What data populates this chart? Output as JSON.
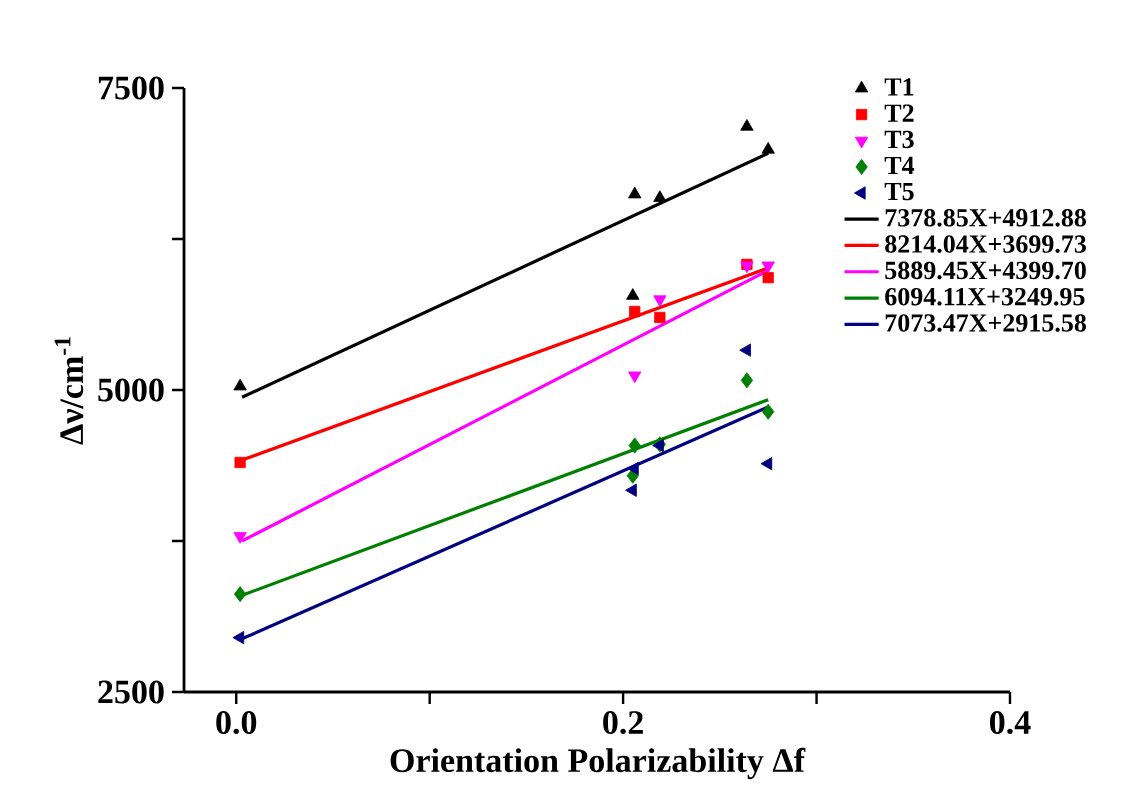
{
  "chart_data": {
    "type": "scatter",
    "xlabel": "Orientation Polarizability Δf",
    "ylabel": "Δν/cm$^{-1}$",
    "xlim": [
      -0.027,
      0.4
    ],
    "ylim": [
      2500,
      7500
    ],
    "xticks": [
      {
        "value": 0,
        "label": "0.0"
      },
      {
        "value": 0.1,
        "label": null
      },
      {
        "value": 0.2,
        "label": "0.2"
      },
      {
        "value": 0.3,
        "label": null
      },
      {
        "value": 0.4,
        "label": "0.4"
      }
    ],
    "yticks": [
      2500,
      {
        "value": 3750,
        "label": null
      },
      5000,
      {
        "value": 6250,
        "label": null
      },
      7500
    ],
    "legend": "top right",
    "series": [
      {
        "name": "T1",
        "marker": "triangle",
        "color": "#000000",
        "x": [
          0.002,
          0.205,
          0.206,
          0.219,
          0.264,
          0.275
        ],
        "values": [
          5030,
          5780,
          6620,
          6590,
          7180,
          6990
        ]
      },
      {
        "name": "T2",
        "marker": "square",
        "color": "#ff0000",
        "x": [
          0.002,
          0.206,
          0.219,
          0.264,
          0.275
        ],
        "values": [
          4400,
          5650,
          5600,
          6040,
          5930
        ]
      },
      {
        "name": "T3",
        "marker": "triangle-down",
        "color": "#ff00ff",
        "x": [
          0.002,
          0.206,
          0.219,
          0.264,
          0.275
        ],
        "values": [
          3790,
          5120,
          5750,
          6030,
          6030
        ]
      },
      {
        "name": "T4",
        "marker": "diamond",
        "color": "#008000",
        "x": [
          0.002,
          0.205,
          0.206,
          0.219,
          0.264,
          0.275
        ],
        "values": [
          3310,
          4290,
          4540,
          4550,
          5080,
          4820
        ]
      },
      {
        "name": "T5",
        "marker": "triangle-left",
        "color": "#000080",
        "x": [
          0.002,
          0.205,
          0.206,
          0.219,
          0.264,
          0.275
        ],
        "values": [
          2950,
          4170,
          4350,
          4540,
          5330,
          4390
        ]
      },
      {
        "name": "7378.85X+4912.88",
        "type": "line",
        "marker": "none",
        "color": "#000000",
        "x": [
          0.003,
          0.275
        ],
        "values": [
          4940,
          6960
        ]
      },
      {
        "name": "8214.04X+3699.73",
        "type": "line",
        "marker": "none",
        "color": "#ff0000",
        "x": [
          0.003,
          0.275
        ],
        "values": [
          4420,
          6010
        ]
      },
      {
        "name": "5889.45X+4399.70",
        "type": "line",
        "marker": "none",
        "color": "#ff00ff",
        "x": [
          0.003,
          0.275
        ],
        "values": [
          3750,
          5990
        ]
      },
      {
        "name": "6094.11X+3249.95",
        "type": "line",
        "marker": "none",
        "color": "#008000",
        "x": [
          0.003,
          0.275
        ],
        "values": [
          3300,
          4920
        ]
      },
      {
        "name": "7073.47X+2915.58",
        "type": "line",
        "marker": "none",
        "color": "#000080",
        "x": [
          0.003,
          0.275
        ],
        "values": [
          2940,
          4860
        ]
      }
    ]
  }
}
